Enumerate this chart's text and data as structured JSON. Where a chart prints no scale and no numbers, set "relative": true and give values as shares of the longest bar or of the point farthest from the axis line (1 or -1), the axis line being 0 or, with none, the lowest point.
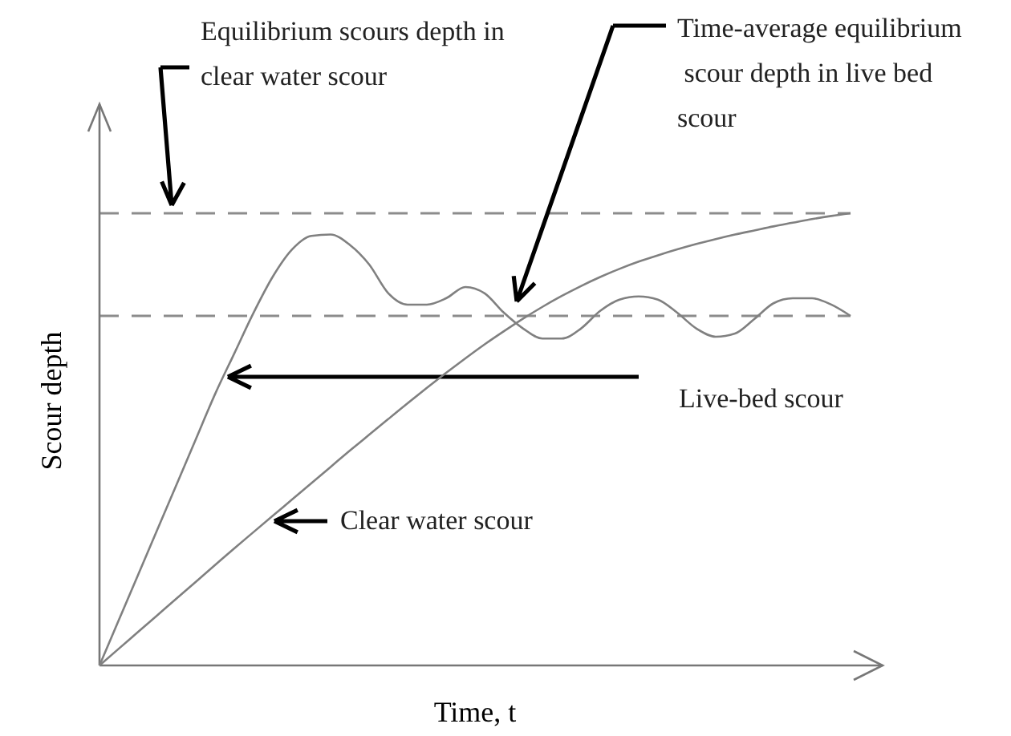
{
  "chart_data": {
    "type": "line",
    "relative": true,
    "xlabel": "Time, t",
    "ylabel": "Scour depth",
    "categories": [
      null,
      null,
      null,
      null,
      null,
      null,
      null,
      null,
      null,
      null,
      null,
      null,
      null,
      null,
      null,
      null,
      null,
      null,
      null,
      null,
      null,
      null,
      null,
      null,
      null,
      null,
      null,
      null,
      null,
      null,
      null,
      null,
      null,
      null,
      null,
      null,
      null,
      null,
      null,
      null
    ],
    "series": [
      {
        "name": "Live-bed scour",
        "color": "#808080",
        "values": [
          0,
          0.1,
          0.2,
          0.3,
          0.4,
          0.5,
          0.6,
          0.69,
          0.78,
          0.86,
          0.92,
          0.95,
          0.953,
          0.93,
          0.887,
          0.823,
          0.798,
          0.798,
          0.812,
          0.837,
          0.823,
          0.78,
          0.745,
          0.723,
          0.723,
          0.745,
          0.784,
          0.809,
          0.816,
          0.809,
          0.78,
          0.745,
          0.727,
          0.734,
          0.766,
          0.801,
          0.812,
          0.812,
          0.798,
          0.773
        ]
      },
      {
        "name": "Clear water scour",
        "color": "#808080",
        "values": [
          0,
          0.037,
          0.074,
          0.111,
          0.148,
          0.185,
          0.222,
          0.259,
          0.295,
          0.331,
          0.367,
          0.403,
          0.439,
          0.475,
          0.51,
          0.545,
          0.58,
          0.614,
          0.647,
          0.679,
          0.71,
          0.739,
          0.767,
          0.793,
          0.817,
          0.839,
          0.859,
          0.877,
          0.893,
          0.907,
          0.92,
          0.932,
          0.943,
          0.953,
          0.962,
          0.971,
          0.979,
          0.987,
          0.994,
          1
        ]
      }
    ],
    "ref_lines": [
      {
        "axis": "y",
        "value": 1,
        "color": "#8c8c8c",
        "line_style": "dashed"
      },
      {
        "axis": "y",
        "value": 0.773,
        "color": "#8c8c8c",
        "line_style": "dashed"
      }
    ],
    "annotations": [
      "Equilibrium scours depth in\nclear water scour",
      "Time-average equilibrium\n scour depth in live bed\nscour"
    ],
    "grid": false,
    "legend": false,
    "marker": "none",
    "line_style": "solid"
  }
}
